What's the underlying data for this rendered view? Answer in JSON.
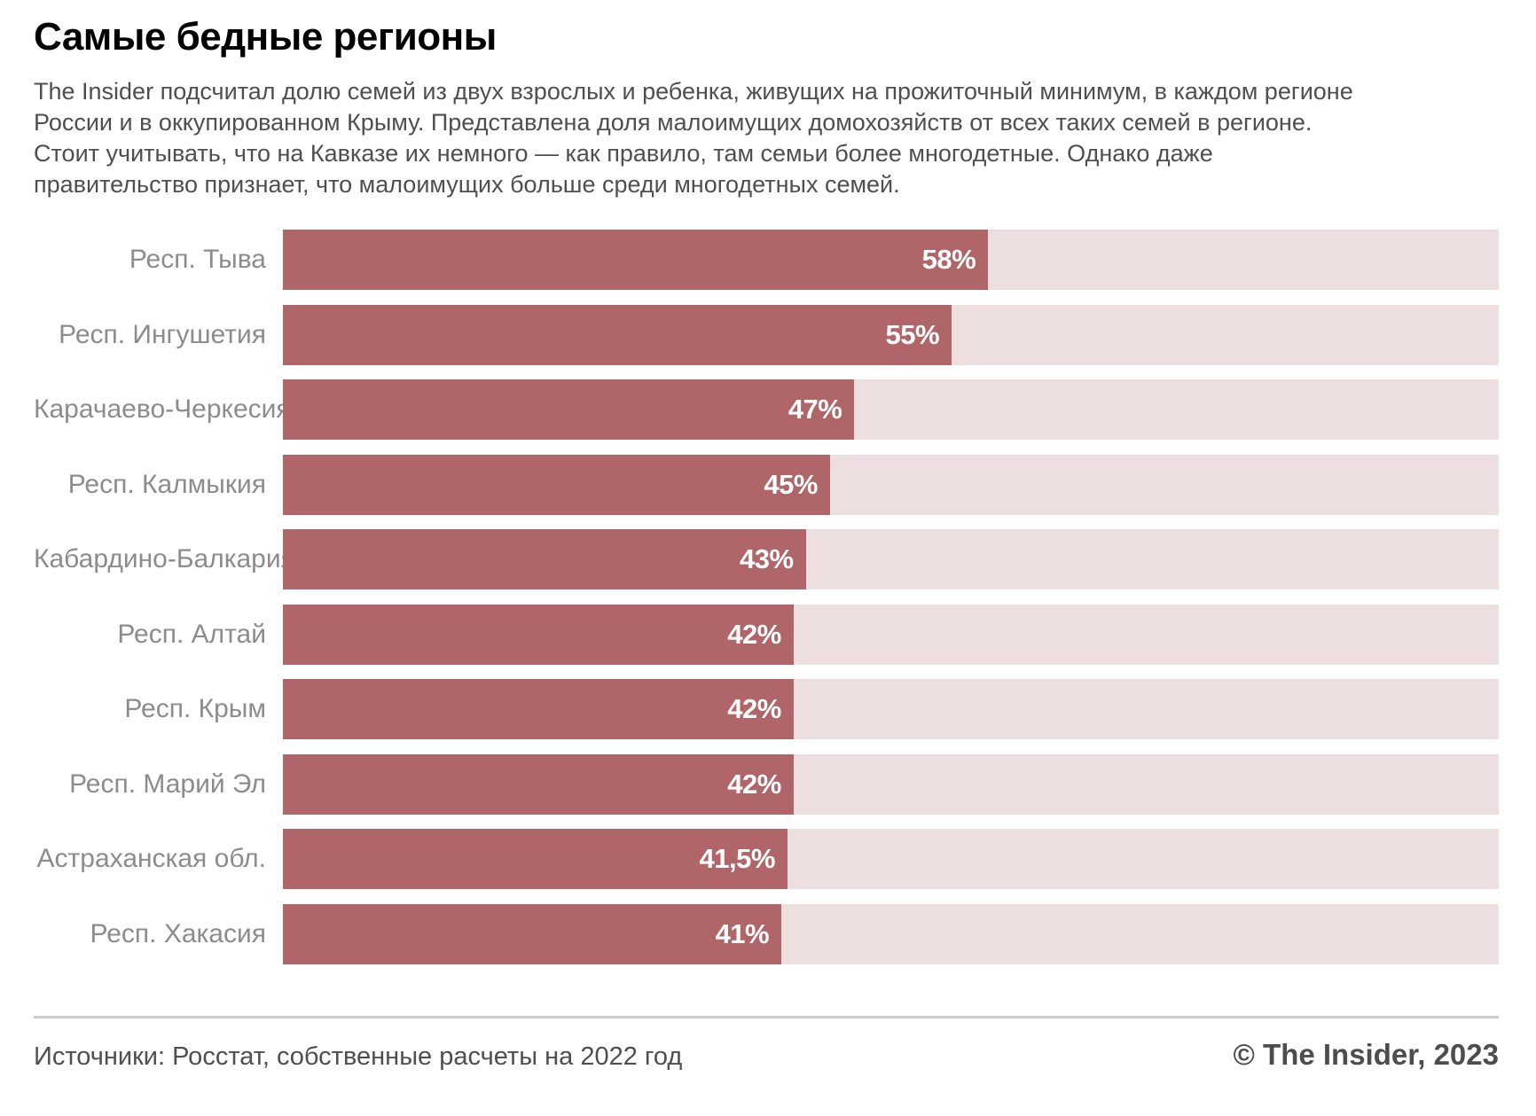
{
  "title": "Самые бедные регионы",
  "subtitle": "The Insider подсчитал долю семей из двух взрослых и ребенка, живущих на прожиточный минимум, в каждом регионе России и в оккупированном Крыму. Представлена доля малоимущих домохозяйств от всех таких семей в регионе. Стоит учитывать, что на Кавказе их немного — как правило, там семьи более многодетные. Однако даже правительство признает, что малоимущих больше среди многодетных семей.",
  "footer": {
    "source": "Источники: Росстат, собственные расчеты на 2022 год",
    "copyright": "© The Insider, 2023"
  },
  "colors": {
    "bar_fill": "#b06568",
    "bar_track": "#eddfe0",
    "title_text": "#000000",
    "subtitle_text": "#4f4f4f",
    "label_text": "#8c8c8c",
    "value_text": "#ffffff",
    "divider": "#cccccc",
    "footer_text": "#4f4f4f",
    "copyright_text": "#4d4d4d",
    "background": "#ffffff"
  },
  "chart_data": {
    "type": "bar",
    "orientation": "horizontal",
    "title": "Самые бедные регионы",
    "unit": "%",
    "xlim": [
      0,
      100
    ],
    "grid": false,
    "legend": false,
    "categories": [
      "Респ. Тыва",
      "Респ. Ингушетия",
      "Карачаево-Черкесия",
      "Респ. Калмыкия",
      "Кабардино-Балкария",
      "Респ. Алтай",
      "Респ. Крым",
      "Респ. Марий Эл",
      "Астраханская обл.",
      "Респ. Хакасия"
    ],
    "values": [
      58,
      55,
      47,
      45,
      43,
      42,
      42,
      42,
      41.5,
      41
    ],
    "value_labels": [
      "58%",
      "55%",
      "47%",
      "45%",
      "43%",
      "42%",
      "42%",
      "42%",
      "41,5%",
      "41%"
    ]
  }
}
